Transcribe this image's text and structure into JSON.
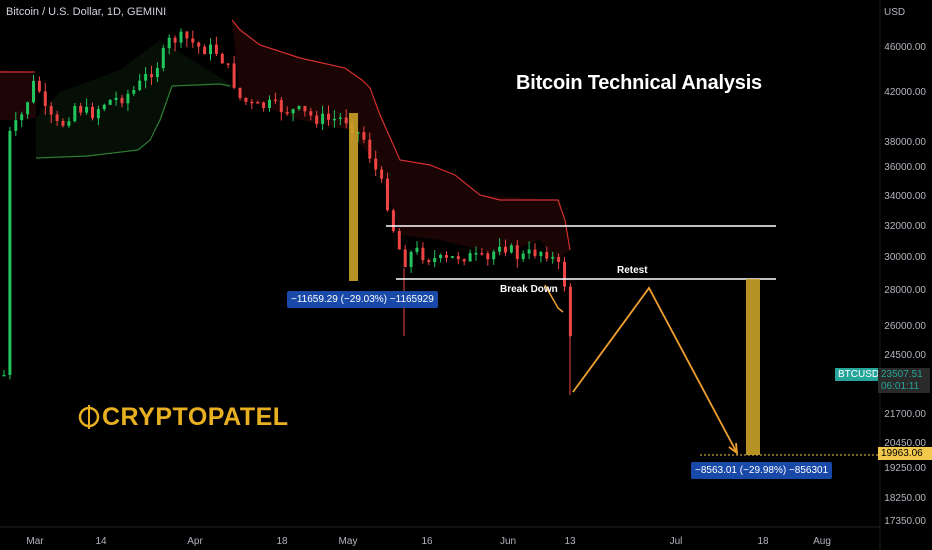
{
  "header": {
    "symbol_line": "Bitcoin / U.S. Dollar, 1D, GEMINI"
  },
  "title": "Bitcoin Technical Analysis",
  "brand": "CRYPTOPATEL",
  "annotations": {
    "breakdown": "Break Down",
    "retest": "Retest"
  },
  "measures": [
    {
      "label": "−11659.29 (−29.03%) −1165929"
    },
    {
      "label": "−8563.01 (−29.98%) −856301"
    }
  ],
  "price_axis": {
    "currency": "USD",
    "ticks": [
      "46000.00",
      "42000.00",
      "38000.00",
      "36000.00",
      "34000.00",
      "32000.00",
      "30000.00",
      "28000.00",
      "26000.00",
      "24500.00",
      "21700.00",
      "20450.00",
      "19250.00",
      "18250.00",
      "17350.00"
    ]
  },
  "time_axis": {
    "ticks": [
      "Mar",
      "14",
      "Apr",
      "18",
      "May",
      "16",
      "Jun",
      "13",
      "Jul",
      "18",
      "Aug"
    ]
  },
  "tags": {
    "symbol": "BTCUSD",
    "last_price": "23507.51",
    "countdown": "06:01:11",
    "target_price": "19963.06"
  },
  "colors": {
    "up": "#26a69a",
    "down": "#ef5350",
    "green_candle": "#22c55e",
    "red_candle": "#ef4444",
    "gold": "#c9a227",
    "orange_path": "#f0a030",
    "label_bg": "#1848a8",
    "supertrend_red": "#d32f2f",
    "supertrend_green": "#2e7d32",
    "grid": "#1b1b1b"
  },
  "chart_data": {
    "type": "candlestick",
    "symbol": "BTCUSD",
    "timeframe": "1D",
    "exchange": "GEMINI",
    "ylim": [
      17350,
      48000
    ],
    "x_categories": [
      "Mar",
      "14",
      "Apr",
      "18",
      "May",
      "16",
      "Jun",
      "13",
      "Jul",
      "18",
      "Aug"
    ],
    "levels": {
      "resistance": 31800,
      "support_retest": 28800,
      "target": 19963.06,
      "last": 23507.51
    },
    "measures": [
      {
        "from": 40165,
        "to": 28506,
        "change": -11659.29,
        "pct": -29.03
      },
      {
        "from": 28526,
        "to": 19963,
        "change": -8563.01,
        "pct": -29.98
      }
    ],
    "projection_path": [
      {
        "x": "Jun 14",
        "y": 22500
      },
      {
        "x": "Jun 28",
        "y": 28200
      },
      {
        "x": "Jul 16",
        "y": 20100
      }
    ]
  }
}
